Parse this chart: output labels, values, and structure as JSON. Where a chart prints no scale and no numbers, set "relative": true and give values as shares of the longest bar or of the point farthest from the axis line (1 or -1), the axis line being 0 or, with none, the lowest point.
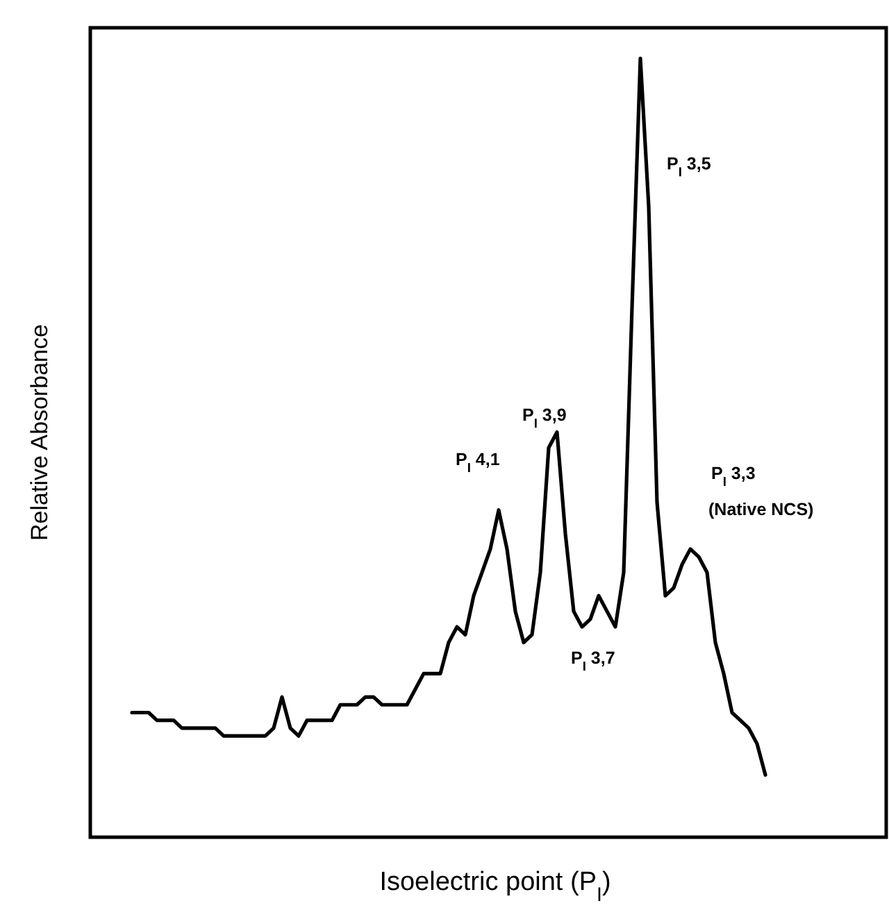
{
  "chart_data": {
    "type": "line",
    "relative": true,
    "xlabel": "Isoelectric point (P$_{I}$)",
    "ylabel": "Relative Absorbance",
    "categories": [
      null,
      null,
      null,
      null,
      null,
      null,
      null,
      null,
      null,
      null,
      null,
      null,
      null,
      null,
      null,
      null,
      null,
      null,
      null,
      null,
      null,
      null,
      null,
      null,
      null,
      null,
      null,
      null,
      null,
      null,
      null,
      null,
      null,
      null,
      null,
      null,
      null,
      null,
      null,
      null,
      null,
      null,
      null,
      null,
      null,
      null,
      null,
      null,
      null,
      null,
      null,
      null,
      null,
      null,
      null,
      null,
      null,
      null,
      null,
      null,
      null,
      null,
      null,
      null,
      null,
      null,
      null,
      null,
      null,
      null,
      null,
      null,
      null,
      null,
      null,
      null,
      null
    ],
    "series": [
      {
        "color": "#000000",
        "values": [
          0.16,
          0.16,
          0.16,
          0.15,
          0.15,
          0.15,
          0.14,
          0.14,
          0.14,
          0.14,
          0.14,
          0.13,
          0.13,
          0.13,
          0.13,
          0.13,
          0.13,
          0.14,
          0.18,
          0.14,
          0.13,
          0.15,
          0.15,
          0.15,
          0.15,
          0.17,
          0.17,
          0.17,
          0.18,
          0.18,
          0.17,
          0.17,
          0.17,
          0.17,
          0.19,
          0.21,
          0.21,
          0.21,
          0.25,
          0.27,
          0.26,
          0.31,
          0.34,
          0.37,
          0.42,
          0.37,
          0.29,
          0.25,
          0.26,
          0.34,
          0.5,
          0.52,
          0.39,
          0.29,
          0.27,
          0.28,
          0.31,
          0.29,
          0.27,
          0.34,
          0.68,
          1,
          0.81,
          0.43,
          0.31,
          0.32,
          0.35,
          0.37,
          0.36,
          0.34,
          0.25,
          0.21,
          0.16,
          0.15,
          0.14,
          0.12,
          0.08
        ]
      }
    ],
    "annotations": [
      "P$_{I}$ 4,1",
      "P$_{I}$ 3,9",
      "P$_{I}$ 3,7",
      "P$_{I}$ 3,5",
      "P$_{I}$ 3,3",
      "(Native NCS)"
    ]
  }
}
